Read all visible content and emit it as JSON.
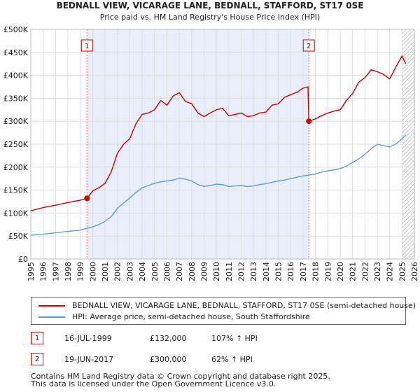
{
  "chart_data": {
    "type": "line",
    "title": "BEDNALL VIEW, VICARAGE LANE, BEDNALL, STAFFORD, ST17 0SE",
    "subtitle": "Price paid vs. HM Land Registry's House Price Index (HPI)",
    "xlabel": "",
    "ylabel": "",
    "xlim": [
      1995,
      2026
    ],
    "ylim": [
      0,
      500000
    ],
    "y_ticks": [
      0,
      50000,
      100000,
      150000,
      200000,
      250000,
      300000,
      350000,
      400000,
      450000,
      500000
    ],
    "y_tick_labels": [
      "£0",
      "£50K",
      "£100K",
      "£150K",
      "£200K",
      "£250K",
      "£300K",
      "£350K",
      "£400K",
      "£450K",
      "£500K"
    ],
    "x_ticks": [
      1995,
      1996,
      1997,
      1998,
      1999,
      2000,
      2001,
      2002,
      2003,
      2004,
      2005,
      2006,
      2007,
      2008,
      2009,
      2010,
      2011,
      2012,
      2013,
      2014,
      2015,
      2016,
      2017,
      2018,
      2019,
      2020,
      2021,
      2022,
      2023,
      2024,
      2025,
      2026
    ],
    "x_tick_labels": [
      "1995",
      "1996",
      "1997",
      "1998",
      "1999",
      "2000",
      "2001",
      "2002",
      "2003",
      "2004",
      "2005",
      "2006",
      "2007",
      "2008",
      "2009",
      "2010",
      "2011",
      "2012",
      "2013",
      "2014",
      "2015",
      "2016",
      "2017",
      "2018",
      "2019",
      "2020",
      "2021",
      "2022",
      "2023",
      "2024",
      "2025",
      "2026"
    ],
    "grid": true,
    "shaded_region": [
      1999.54,
      2017.47
    ],
    "hatched_region": [
      2025.0,
      2026
    ],
    "series": [
      {
        "name": "BEDNALL VIEW, VICARAGE LANE, BEDNALL, STAFFORD, ST17 0SE (semi-detached house)",
        "color": "#cc0000",
        "x": [
          1995,
          1996,
          1997,
          1998,
          1999,
          1999.54,
          2000,
          2000.5,
          2001,
          2001.5,
          2002,
          2002.5,
          2003,
          2003.5,
          2004,
          2004.5,
          2005,
          2005.5,
          2006,
          2006.5,
          2007,
          2007.5,
          2008,
          2008.5,
          2009,
          2009.5,
          2010,
          2010.5,
          2011,
          2011.5,
          2012,
          2012.5,
          2013,
          2013.5,
          2014,
          2014.5,
          2015,
          2015.5,
          2016,
          2016.5,
          2017,
          2017.4,
          2017.47,
          2018,
          2018.5,
          2019,
          2019.5,
          2020,
          2020.5,
          2021,
          2021.5,
          2022,
          2022.5,
          2023,
          2023.5,
          2024,
          2024.5,
          2025,
          2025.3
        ],
        "y": [
          105000,
          112000,
          117000,
          123000,
          128000,
          132000,
          148000,
          155000,
          165000,
          190000,
          230000,
          250000,
          262000,
          295000,
          315000,
          318000,
          325000,
          345000,
          335000,
          355000,
          362000,
          343000,
          338000,
          318000,
          310000,
          318000,
          325000,
          328000,
          312000,
          315000,
          318000,
          310000,
          312000,
          318000,
          320000,
          335000,
          338000,
          352000,
          358000,
          363000,
          372000,
          375000,
          300000,
          305000,
          312000,
          318000,
          322000,
          325000,
          345000,
          360000,
          385000,
          395000,
          412000,
          408000,
          402000,
          392000,
          418000,
          442000,
          425000
        ]
      },
      {
        "name": "HPI: Average price, semi-detached house, South Staffordshire",
        "color": "#6699cc",
        "x": [
          1995,
          1996,
          1997,
          1998,
          1999,
          2000,
          2000.5,
          2001,
          2001.5,
          2002,
          2002.5,
          2003,
          2003.5,
          2004,
          2004.5,
          2005,
          2005.5,
          2006,
          2006.5,
          2007,
          2007.5,
          2008,
          2008.5,
          2009,
          2009.5,
          2010,
          2010.5,
          2011,
          2011.5,
          2012,
          2012.5,
          2013,
          2013.5,
          2014,
          2014.5,
          2015,
          2015.5,
          2016,
          2016.5,
          2017,
          2017.5,
          2018,
          2018.5,
          2019,
          2019.5,
          2020,
          2020.5,
          2021,
          2021.5,
          2022,
          2022.5,
          2023,
          2023.5,
          2024,
          2024.5,
          2025,
          2025.3
        ],
        "y": [
          52000,
          54000,
          57000,
          60000,
          63000,
          70000,
          75000,
          82000,
          92000,
          110000,
          122000,
          133000,
          145000,
          155000,
          160000,
          165000,
          168000,
          170000,
          172000,
          176000,
          174000,
          170000,
          162000,
          158000,
          160000,
          163000,
          162000,
          158000,
          159000,
          160000,
          158000,
          159000,
          162000,
          164000,
          167000,
          170000,
          172000,
          175000,
          178000,
          181000,
          183000,
          185000,
          189000,
          192000,
          194000,
          197000,
          202000,
          210000,
          218000,
          228000,
          240000,
          250000,
          247000,
          244000,
          250000,
          262000,
          270000
        ]
      }
    ],
    "sales": [
      {
        "label": "1",
        "x": 1999.54,
        "y": 132000
      },
      {
        "label": "2",
        "x": 2017.47,
        "y": 300000
      }
    ]
  },
  "legend": {
    "items": [
      {
        "label": "BEDNALL VIEW, VICARAGE LANE, BEDNALL, STAFFORD, ST17 0SE (semi-detached house)",
        "color": "#cc0000"
      },
      {
        "label": "HPI: Average price, semi-detached house, South Staffordshire",
        "color": "#6699cc"
      }
    ]
  },
  "annotations": [
    {
      "num": "1",
      "date": "16-JUL-1999",
      "price": "£132,000",
      "pct": "107% ↑ HPI"
    },
    {
      "num": "2",
      "date": "19-JUN-2017",
      "price": "£300,000",
      "pct": "62% ↑ HPI"
    }
  ],
  "footer": {
    "line1": "Contains HM Land Registry data © Crown copyright and database right 2025.",
    "line2": "This data is licensed under the Open Government Licence v3.0."
  }
}
